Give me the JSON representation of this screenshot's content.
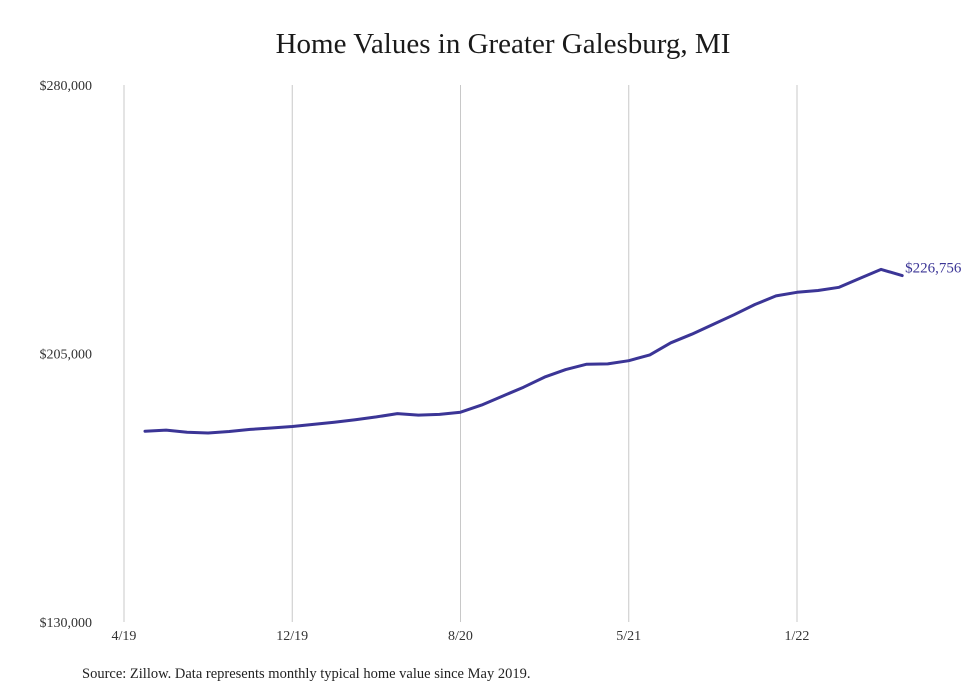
{
  "chart_data": {
    "type": "line",
    "title": "Home Values in Greater Galesburg, MI",
    "xlabel": "",
    "ylabel": "",
    "x": [
      "2019-05",
      "2019-06",
      "2019-07",
      "2019-08",
      "2019-09",
      "2019-10",
      "2019-11",
      "2019-12",
      "2020-01",
      "2020-02",
      "2020-03",
      "2020-04",
      "2020-05",
      "2020-06",
      "2020-07",
      "2020-08",
      "2020-09",
      "2020-10",
      "2020-11",
      "2020-12",
      "2021-01",
      "2021-02",
      "2021-03",
      "2021-04",
      "2021-05",
      "2021-06",
      "2021-07",
      "2021-08",
      "2021-09",
      "2021-10",
      "2021-11",
      "2021-12",
      "2022-01",
      "2022-02",
      "2022-03",
      "2022-04",
      "2022-05"
    ],
    "series": [
      {
        "color": "#3b3596",
        "values": [
          183300,
          183600,
          183000,
          182800,
          183200,
          183800,
          184200,
          184600,
          185200,
          185800,
          186500,
          187300,
          188200,
          187800,
          188000,
          188600,
          190600,
          193100,
          195600,
          198400,
          200500,
          202000,
          202100,
          203000,
          204600,
          208000,
          210400,
          213100,
          215800,
          218700,
          221100,
          222100,
          222600,
          223500,
          226000,
          228500,
          226756
        ]
      }
    ],
    "x_ticks": [
      "4/19",
      "12/19",
      "8/20",
      "5/21",
      "1/22"
    ],
    "y_ticks": [
      "$130,000",
      "$205,000",
      "$280,000"
    ],
    "ylim": [
      130000,
      280000
    ],
    "end_label": "$226,756",
    "grid": "vertical",
    "source": "Source: Zillow. Data represents monthly typical home value since May 2019."
  }
}
